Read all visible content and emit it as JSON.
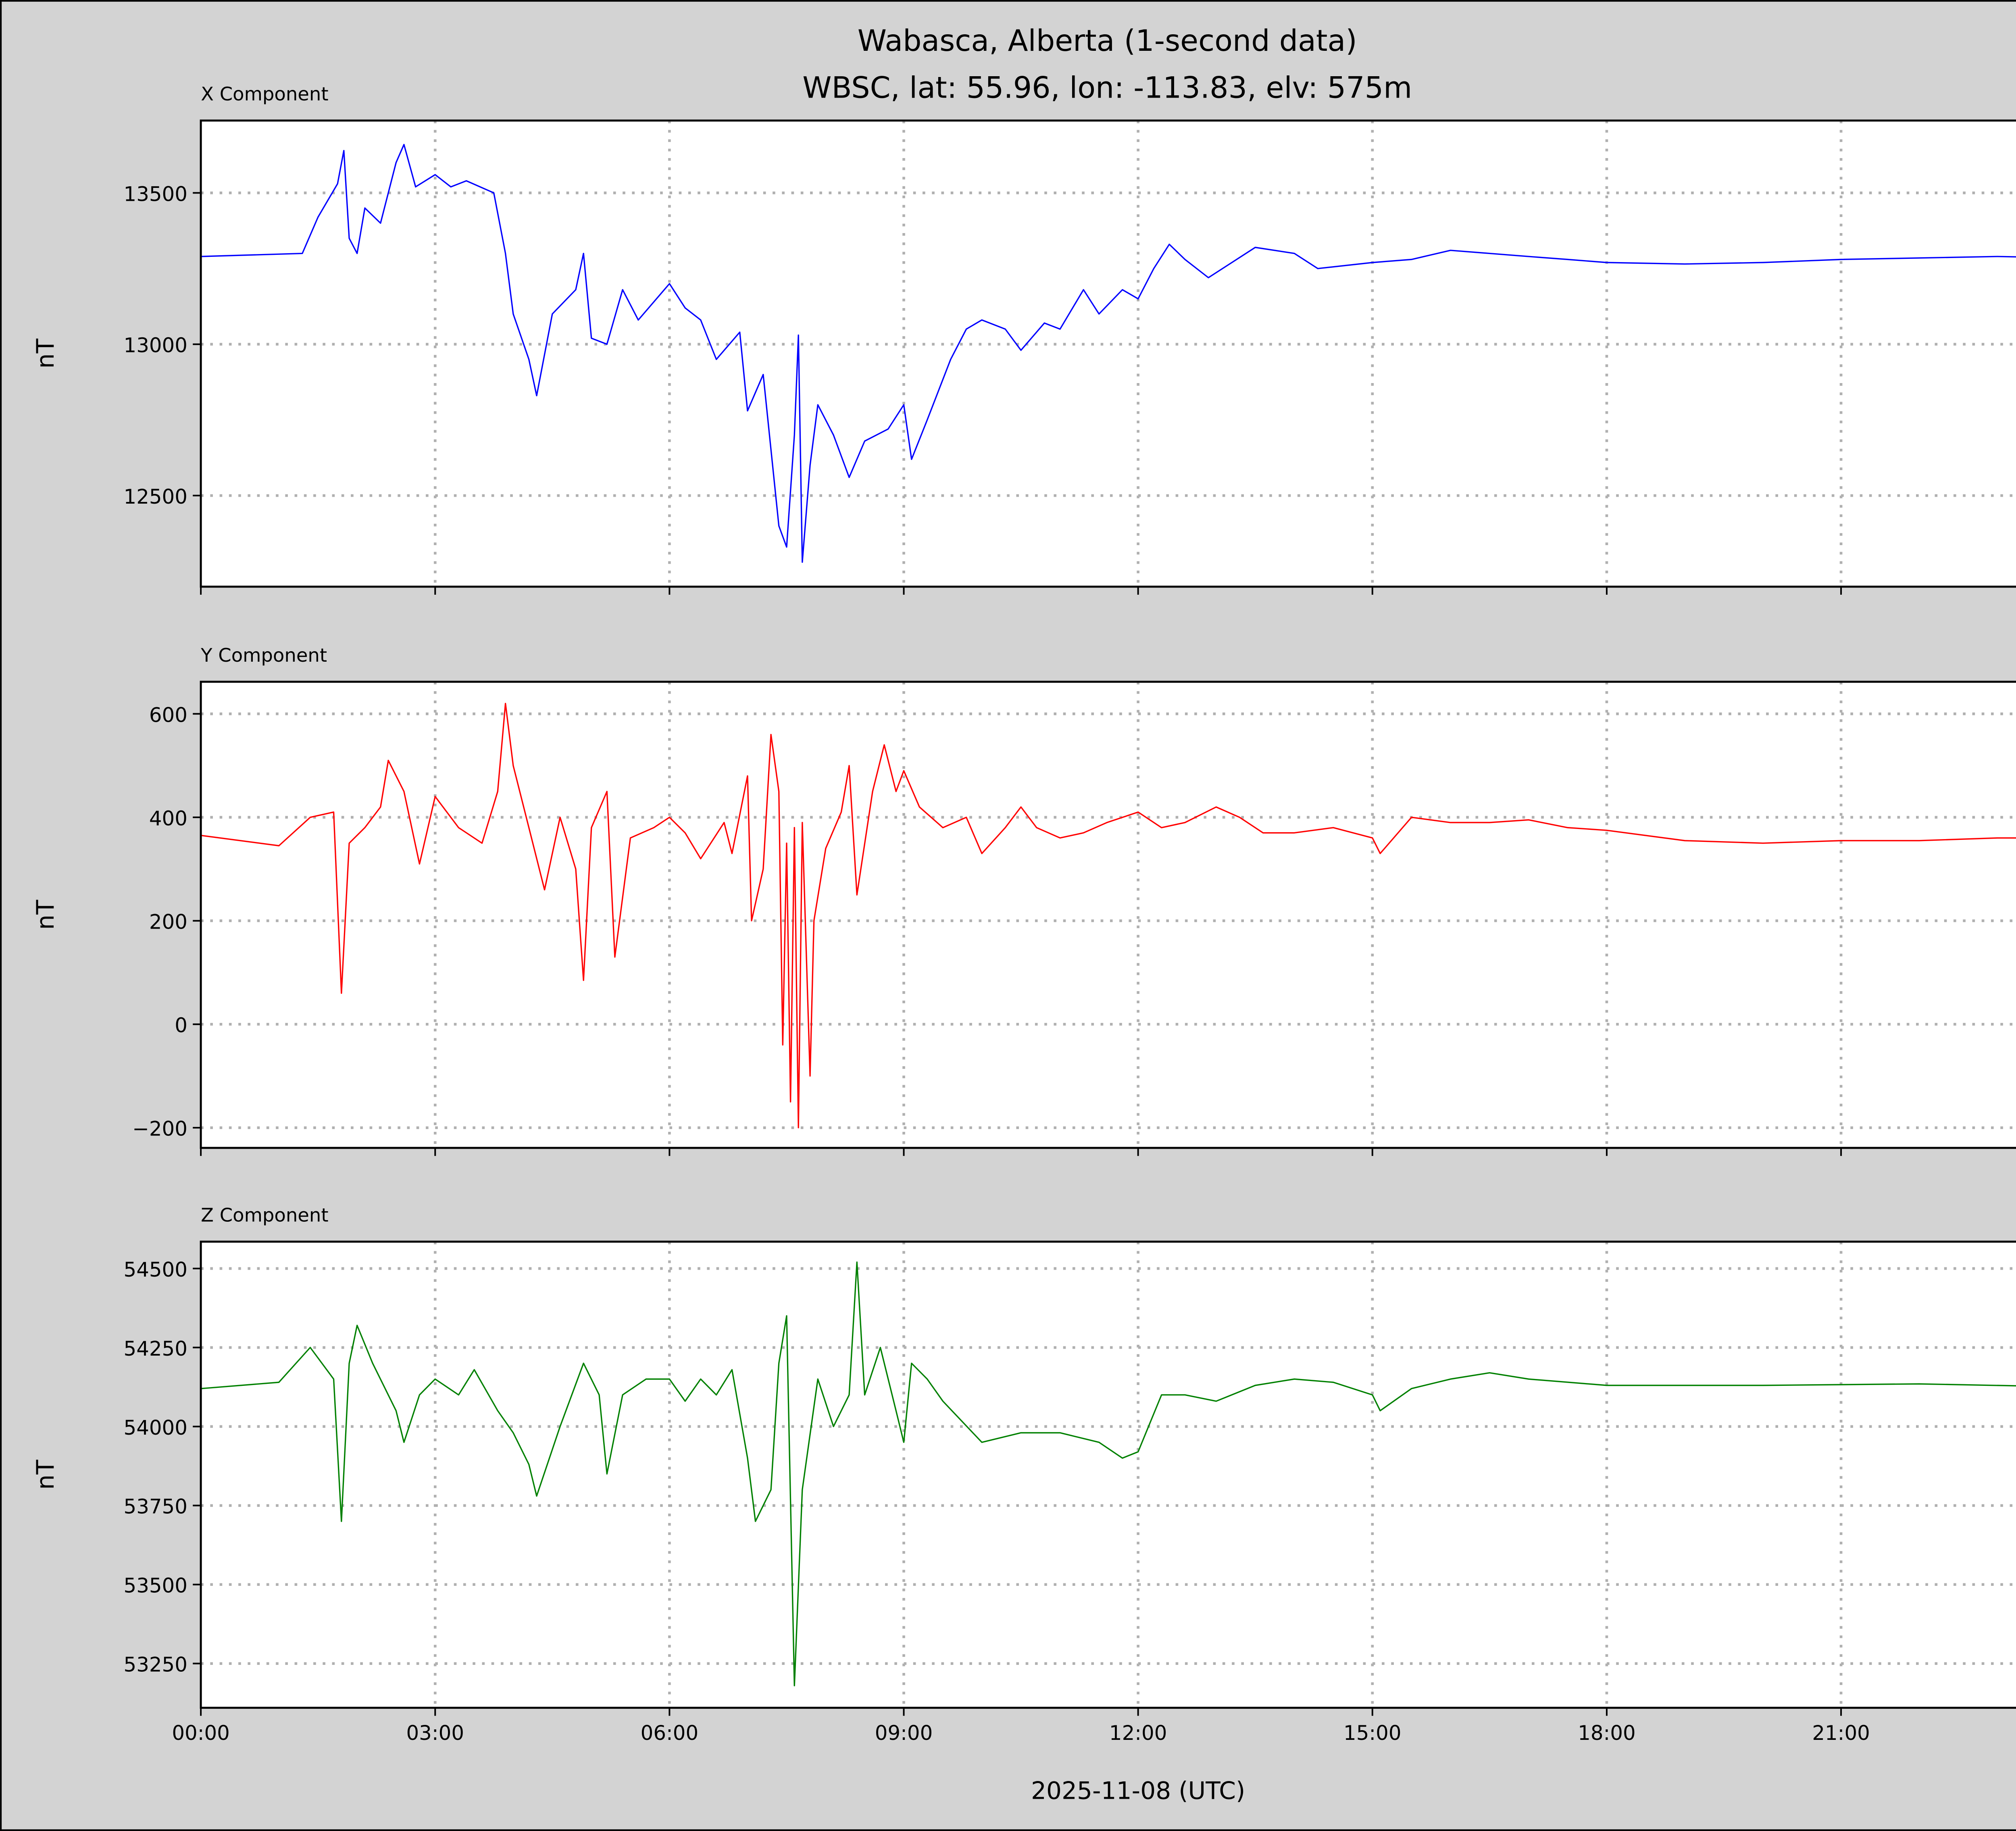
{
  "chart_data": {
    "type": "line",
    "title": "Wabasca, Alberta (1-second data)",
    "subtitle": "WBSC, lat: 55.96, lon: -113.83, elv: 575m",
    "xlabel": "2025-11-08 (UTC)",
    "xlim_hours": [
      0,
      24
    ],
    "x_ticks": [
      0,
      3,
      6,
      9,
      12,
      15,
      18,
      21
    ],
    "x_tick_labels": [
      "00:00",
      "03:00",
      "06:00",
      "09:00",
      "12:00",
      "15:00",
      "18:00",
      "21:00"
    ],
    "grid": true,
    "panels": [
      {
        "name": "X Component",
        "ylabel": "nT",
        "color": "#0000ff",
        "ylim": [
          12199,
          13739
        ],
        "y_ticks": [
          12500,
          13000,
          13500
        ],
        "y_tick_labels": [
          "12500",
          "13000",
          "13500"
        ],
        "x": [
          0,
          1.3,
          1.5,
          1.75,
          1.83,
          1.9,
          2.0,
          2.1,
          2.3,
          2.5,
          2.6,
          2.75,
          3.0,
          3.2,
          3.4,
          3.75,
          3.9,
          4.0,
          4.2,
          4.3,
          4.5,
          4.8,
          4.9,
          5.0,
          5.2,
          5.4,
          5.6,
          6.0,
          6.2,
          6.4,
          6.6,
          6.9,
          7.0,
          7.2,
          7.4,
          7.5,
          7.6,
          7.65,
          7.7,
          7.8,
          7.9,
          8.1,
          8.3,
          8.5,
          8.8,
          9.0,
          9.1,
          9.3,
          9.6,
          9.8,
          10.0,
          10.3,
          10.5,
          10.8,
          11.0,
          11.3,
          11.5,
          11.8,
          12.0,
          12.2,
          12.4,
          12.6,
          12.9,
          13.2,
          13.5,
          14.0,
          14.3,
          15.0,
          15.5,
          16.0,
          16.5,
          17.0,
          17.5,
          18,
          19,
          20,
          21,
          22,
          23,
          24
        ],
        "values": [
          13290,
          13300,
          13420,
          13530,
          13640,
          13350,
          13300,
          13450,
          13400,
          13600,
          13660,
          13520,
          13560,
          13520,
          13540,
          13500,
          13300,
          13100,
          12950,
          12830,
          13100,
          13180,
          13300,
          13020,
          13000,
          13180,
          13080,
          13200,
          13120,
          13080,
          12950,
          13040,
          12780,
          12900,
          12400,
          12330,
          12700,
          13030,
          12280,
          12600,
          12800,
          12700,
          12560,
          12680,
          12720,
          12800,
          12620,
          12750,
          12950,
          13050,
          13080,
          13050,
          12980,
          13070,
          13050,
          13180,
          13100,
          13180,
          13150,
          13250,
          13330,
          13280,
          13220,
          13270,
          13320,
          13300,
          13250,
          13270,
          13280,
          13310,
          13300,
          13290,
          13280,
          13270,
          13265,
          13270,
          13280,
          13285,
          13290,
          13285
        ]
      },
      {
        "name": "Y Component",
        "ylabel": "nT",
        "color": "#ff0000",
        "ylim": [
          -239,
          662
        ],
        "y_ticks": [
          -200,
          0,
          200,
          400,
          600
        ],
        "y_tick_labels": [
          "−200",
          "0",
          "200",
          "400",
          "600"
        ],
        "x": [
          0,
          1.0,
          1.4,
          1.7,
          1.8,
          1.9,
          2.1,
          2.3,
          2.4,
          2.6,
          2.8,
          3.0,
          3.3,
          3.6,
          3.8,
          3.9,
          4.0,
          4.2,
          4.4,
          4.6,
          4.8,
          4.9,
          5.0,
          5.2,
          5.3,
          5.5,
          5.8,
          6.0,
          6.2,
          6.4,
          6.7,
          6.8,
          7.0,
          7.05,
          7.2,
          7.3,
          7.4,
          7.45,
          7.5,
          7.55,
          7.6,
          7.65,
          7.7,
          7.8,
          7.85,
          8.0,
          8.2,
          8.3,
          8.4,
          8.6,
          8.75,
          8.9,
          9.0,
          9.2,
          9.5,
          9.8,
          10.0,
          10.3,
          10.5,
          10.7,
          11.0,
          11.3,
          11.6,
          12.0,
          12.3,
          12.6,
          13.0,
          13.3,
          13.6,
          14.0,
          14.5,
          15.0,
          15.1,
          15.5,
          16.0,
          16.5,
          17.0,
          17.5,
          18,
          19,
          20,
          21,
          22,
          23,
          24
        ],
        "values": [
          365,
          345,
          400,
          410,
          60,
          350,
          380,
          420,
          510,
          450,
          310,
          440,
          380,
          350,
          450,
          620,
          500,
          380,
          260,
          400,
          300,
          85,
          380,
          450,
          130,
          360,
          380,
          400,
          370,
          320,
          390,
          330,
          480,
          200,
          300,
          560,
          450,
          -40,
          350,
          -150,
          380,
          -200,
          390,
          -100,
          200,
          340,
          410,
          500,
          250,
          450,
          540,
          450,
          490,
          420,
          380,
          400,
          330,
          380,
          420,
          380,
          360,
          370,
          390,
          410,
          380,
          390,
          420,
          400,
          370,
          370,
          380,
          360,
          330,
          400,
          390,
          390,
          395,
          380,
          375,
          355,
          350,
          355,
          355,
          360,
          360
        ]
      },
      {
        "name": "Z Component",
        "ylabel": "nT",
        "color": "#008000",
        "ylim": [
          53110,
          54585
        ],
        "y_ticks": [
          53250,
          53500,
          53750,
          54000,
          54250,
          54500
        ],
        "y_tick_labels": [
          "53250",
          "53500",
          "53750",
          "54000",
          "54250",
          "54500"
        ],
        "x": [
          0,
          1.0,
          1.4,
          1.7,
          1.8,
          1.9,
          2.0,
          2.2,
          2.5,
          2.6,
          2.8,
          3.0,
          3.3,
          3.5,
          3.8,
          4.0,
          4.2,
          4.3,
          4.6,
          4.9,
          5.1,
          5.2,
          5.4,
          5.7,
          6.0,
          6.2,
          6.4,
          6.6,
          6.8,
          7.0,
          7.1,
          7.3,
          7.4,
          7.5,
          7.6,
          7.7,
          7.9,
          8.1,
          8.3,
          8.4,
          8.5,
          8.7,
          8.9,
          9.0,
          9.1,
          9.3,
          9.5,
          10.0,
          10.5,
          11.0,
          11.5,
          11.8,
          12.0,
          12.3,
          12.6,
          13.0,
          13.5,
          14.0,
          14.5,
          15.0,
          15.1,
          15.5,
          16.0,
          16.5,
          17.0,
          18,
          20,
          22,
          24
        ],
        "values": [
          54120,
          54140,
          54250,
          54150,
          53700,
          54200,
          54320,
          54200,
          54050,
          53950,
          54100,
          54150,
          54100,
          54180,
          54050,
          53980,
          53880,
          53780,
          54000,
          54200,
          54100,
          53850,
          54100,
          54150,
          54150,
          54080,
          54150,
          54100,
          54180,
          53900,
          53700,
          53800,
          54200,
          54350,
          53180,
          53800,
          54150,
          54000,
          54100,
          54520,
          54100,
          54250,
          54050,
          53950,
          54200,
          54150,
          54080,
          53950,
          53980,
          53980,
          53950,
          53900,
          53920,
          54100,
          54100,
          54080,
          54130,
          54150,
          54140,
          54100,
          54050,
          54120,
          54150,
          54170,
          54150,
          54130,
          54130,
          54135,
          54125
        ]
      }
    ]
  }
}
